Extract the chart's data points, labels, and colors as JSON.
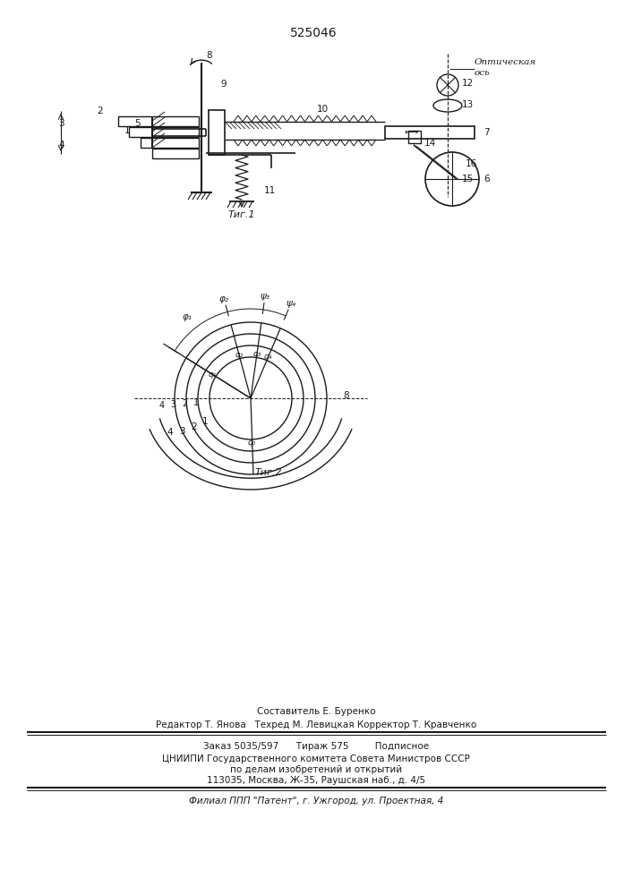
{
  "title": "525046",
  "fig1_label": "Τиг.1",
  "fig2_label": "Τиг.2",
  "optical_label1": "Оптическая",
  "optical_label2": "ось",
  "footer_line1": "Составитель Е. Буренко",
  "footer_line2": "Редактор Т. Янова   Техред М. Левицкая Корректор Т. Кравченко",
  "footer_line3": "Заказ 5035/597      Тираж 575         Подписное",
  "footer_line4": "ЦНИИПИ Государственного комитета Совета Министров СССР",
  "footer_line5": "по делам изобретений и открытий",
  "footer_line6": "113035, Москва, Ж-35, Раушская наб., д. 4/5",
  "footer_line7": "Филиал ППП \"Патент\", г. Ужгород, ул. Проектная, 4",
  "bg_color": "#ffffff",
  "line_color": "#1a1a1a"
}
